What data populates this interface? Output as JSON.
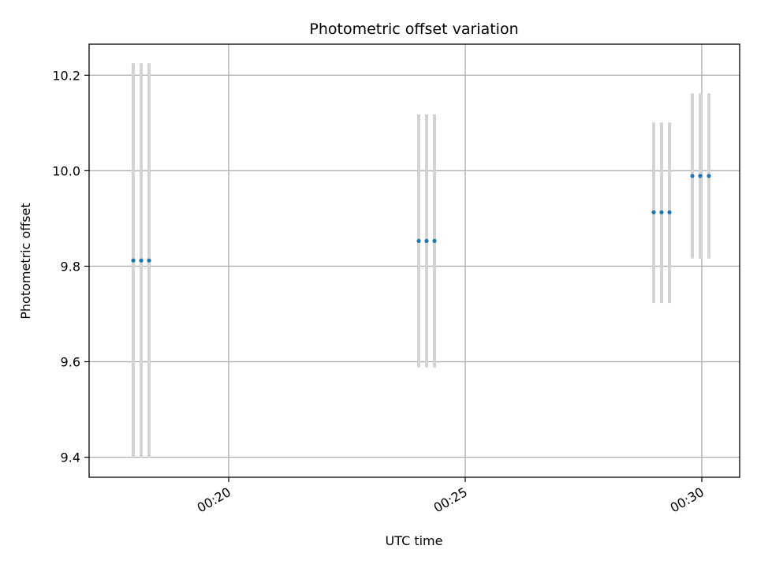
{
  "chart_data": {
    "type": "scatter",
    "title": "Photometric offset variation",
    "xlabel": "UTC time",
    "ylabel": "Photometric offset",
    "xlim": [
      "00:17:03",
      "00:30:48"
    ],
    "ylim": [
      9.358,
      10.265
    ],
    "xticks": [
      "00:20",
      "00:25",
      "00:30"
    ],
    "yticks": [
      9.4,
      9.6,
      9.8,
      10.0,
      10.2
    ],
    "grid": true,
    "legend": "none",
    "colors": {
      "point": "#1f77b4",
      "errorbar": "#d3d3d3",
      "grid": "#b0b0b0"
    },
    "points": [
      {
        "x": "00:17:59",
        "y": 9.812,
        "ylow": 9.4,
        "yhigh": 10.225
      },
      {
        "x": "00:18:09",
        "y": 9.812,
        "ylow": 9.4,
        "yhigh": 10.225
      },
      {
        "x": "00:18:19",
        "y": 9.812,
        "ylow": 9.4,
        "yhigh": 10.225
      },
      {
        "x": "00:24:01",
        "y": 9.853,
        "ylow": 9.588,
        "yhigh": 10.118
      },
      {
        "x": "00:24:11",
        "y": 9.853,
        "ylow": 9.588,
        "yhigh": 10.118
      },
      {
        "x": "00:24:21",
        "y": 9.853,
        "ylow": 9.588,
        "yhigh": 10.118
      },
      {
        "x": "00:28:59",
        "y": 9.913,
        "ylow": 9.723,
        "yhigh": 10.101
      },
      {
        "x": "00:29:09",
        "y": 9.913,
        "ylow": 9.723,
        "yhigh": 10.101
      },
      {
        "x": "00:29:19",
        "y": 9.913,
        "ylow": 9.723,
        "yhigh": 10.101
      },
      {
        "x": "00:29:48",
        "y": 9.989,
        "ylow": 9.816,
        "yhigh": 10.162
      },
      {
        "x": "00:29:58",
        "y": 9.989,
        "ylow": 9.816,
        "yhigh": 10.162
      },
      {
        "x": "00:30:09",
        "y": 9.989,
        "ylow": 9.816,
        "yhigh": 10.162
      }
    ]
  }
}
